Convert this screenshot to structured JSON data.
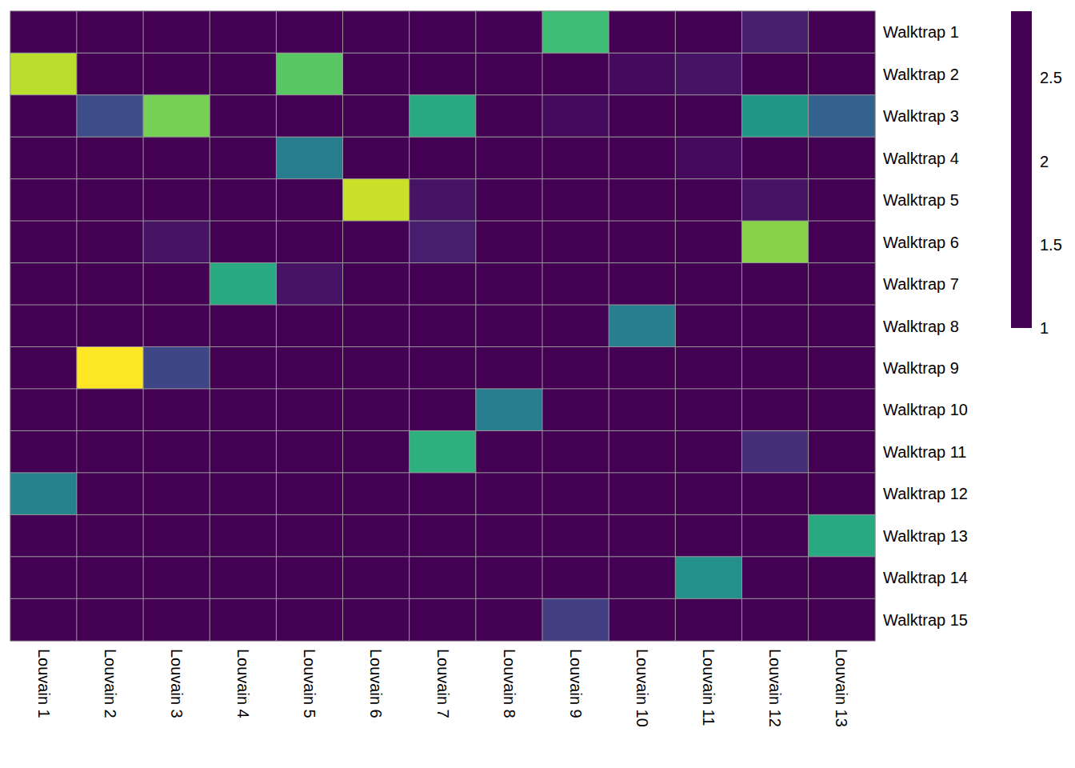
{
  "chart_data": {
    "type": "heatmap",
    "color": "viridis",
    "x": [
      "Louvain 1",
      "Louvain 2",
      "Louvain 3",
      "Louvain 4",
      "Louvain 5",
      "Louvain 6",
      "Louvain 7",
      "Louvain 8",
      "Louvain 9",
      "Louvain 10",
      "Louvain 11",
      "Louvain 12",
      "Louvain 13"
    ],
    "y": [
      "Walktrap 1",
      "Walktrap 2",
      "Walktrap 3",
      "Walktrap 4",
      "Walktrap 5",
      "Walktrap 6",
      "Walktrap 7",
      "Walktrap 8",
      "Walktrap 9",
      "Walktrap 10",
      "Walktrap 11",
      "Walktrap 12",
      "Walktrap 13",
      "Walktrap 14",
      "Walktrap 15"
    ],
    "values": [
      [
        1,
        1,
        1,
        1,
        1,
        1,
        1,
        1,
        2.3,
        1,
        1,
        1.15,
        1
      ],
      [
        2.7,
        1,
        1,
        1,
        2.4,
        1,
        1,
        1,
        1,
        1.05,
        1.1,
        1,
        1
      ],
      [
        1,
        1.45,
        2.5,
        1,
        1,
        1,
        2.15,
        1,
        1.05,
        1,
        1,
        2.0,
        1.6
      ],
      [
        1,
        1,
        1,
        1,
        1.8,
        1,
        1,
        1,
        1,
        1,
        1.05,
        1,
        1
      ],
      [
        1,
        1,
        1,
        1,
        1,
        2.75,
        1.1,
        1,
        1,
        1,
        1,
        1.1,
        1
      ],
      [
        1,
        1,
        1.1,
        1,
        1,
        1,
        1.15,
        1,
        1,
        1,
        1,
        2.55,
        1
      ],
      [
        1,
        1,
        1,
        2.15,
        1.1,
        1,
        1,
        1,
        1,
        1,
        1,
        1,
        1
      ],
      [
        1,
        1,
        1,
        1,
        1,
        1,
        1,
        1,
        1,
        1.8,
        1,
        1,
        1
      ],
      [
        1,
        2.9,
        1.4,
        1,
        1,
        1,
        1,
        1,
        1,
        1,
        1,
        1,
        1
      ],
      [
        1,
        1,
        1,
        1,
        1,
        1,
        1,
        1.8,
        1,
        1,
        1,
        1,
        1
      ],
      [
        1,
        1,
        1,
        1,
        1,
        1,
        2.2,
        1,
        1,
        1,
        1,
        1.25,
        1
      ],
      [
        1.85,
        1,
        1,
        1,
        1,
        1,
        1,
        1,
        1,
        1,
        1,
        1,
        1
      ],
      [
        1,
        1,
        1,
        1,
        1,
        1,
        1,
        1,
        1,
        1,
        1,
        1,
        2.15
      ],
      [
        1,
        1,
        1,
        1,
        1,
        1,
        1,
        1,
        1,
        1,
        1.95,
        1,
        1
      ],
      [
        1,
        1,
        1,
        1,
        1,
        1,
        1,
        1,
        1.35,
        1,
        1,
        1,
        1
      ]
    ],
    "colorbar": {
      "range": [
        1,
        2.9
      ],
      "ticks": [
        1,
        1.5,
        2,
        2.5
      ]
    }
  }
}
